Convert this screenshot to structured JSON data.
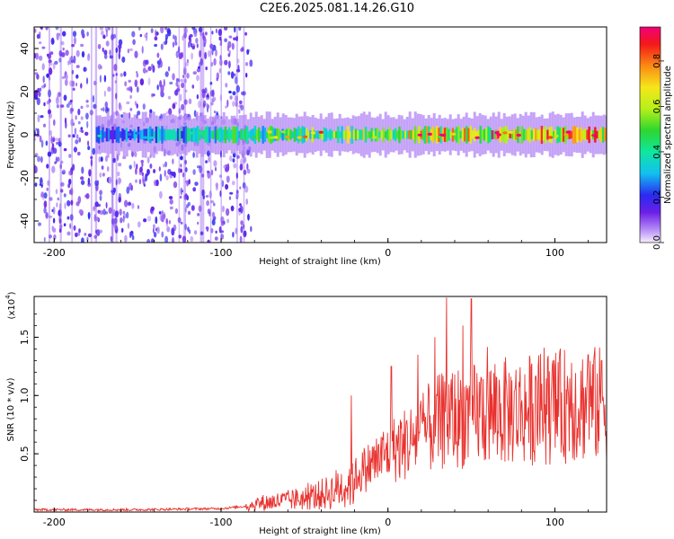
{
  "title": "C2E6.2025.081.14.26.G10",
  "chart_data": [
    {
      "type": "heatmap",
      "xlabel": "Height of straight line (km)",
      "ylabel": "Frequency (Hz)",
      "xlim": [
        -212,
        131
      ],
      "ylim": [
        -50,
        50
      ],
      "xticks": [
        -200,
        -100,
        0,
        100
      ],
      "xtick_labels": [
        "-200",
        "-100",
        "0",
        "100"
      ],
      "yticks": [
        -40,
        -20,
        0,
        20,
        40
      ],
      "ytick_labels": [
        "-40",
        "-20",
        "0",
        "20",
        "40"
      ],
      "colorbar": {
        "label": "Normalized spectral amplitude",
        "range": [
          0.0,
          0.95
        ],
        "ticks": [
          0.0,
          0.2,
          0.4,
          0.6,
          0.8
        ],
        "tick_labels": [
          "0.0",
          "0.2",
          "0.4",
          "0.6",
          "0.8"
        ]
      },
      "features": [
        {
          "description": "broadband noise",
          "x_range": [
            -212,
            -82
          ],
          "freq_range": [
            -50,
            50
          ],
          "amplitude": 0.15
        },
        {
          "description": "narrow band",
          "x_range": [
            -175,
            131
          ],
          "center_freq": 0,
          "half_width_hz": 3,
          "amplitude_range": [
            0.3,
            0.95
          ]
        }
      ]
    },
    {
      "type": "line",
      "xlabel": "Height of straight line (km)",
      "ylabel": "SNR (10 * v/v)",
      "multiplier": "(x10",
      "multiplier_exp": "4",
      "xlim": [
        -212,
        131
      ],
      "ylim": [
        0,
        1.85
      ],
      "xticks": [
        -200,
        -100,
        0,
        100
      ],
      "xtick_labels": [
        "-200",
        "-100",
        "0",
        "100"
      ],
      "yticks": [
        0.5,
        1.0,
        1.5
      ],
      "ytick_labels": [
        "0.5",
        "1.0",
        "1.5"
      ],
      "color": "#e8322e",
      "trend": {
        "x": [
          -212,
          -150,
          -100,
          -85,
          -75,
          -60,
          -45,
          -35,
          -25,
          -15,
          -5,
          5,
          15,
          25,
          35,
          45,
          55,
          70,
          85,
          100,
          115,
          131
        ],
        "y": [
          0.02,
          0.02,
          0.03,
          0.05,
          0.08,
          0.1,
          0.13,
          0.17,
          0.24,
          0.36,
          0.46,
          0.55,
          0.62,
          0.72,
          0.8,
          0.82,
          0.85,
          0.86,
          0.88,
          0.9,
          0.93,
          0.92
        ]
      },
      "peaks": [
        {
          "x": 35,
          "y": 1.84
        },
        {
          "x": 50,
          "y": 1.83
        },
        {
          "x": 45,
          "y": 1.6
        },
        {
          "x": 28,
          "y": 1.5
        },
        {
          "x": 18,
          "y": 1.35
        },
        {
          "x": 2,
          "y": 1.25
        },
        {
          "x": -22,
          "y": 1.0
        },
        {
          "x": 120,
          "y": 1.35
        },
        {
          "x": 128,
          "y": 1.3
        },
        {
          "x": 90,
          "y": 1.25
        },
        {
          "x": 110,
          "y": 1.28
        }
      ]
    }
  ]
}
